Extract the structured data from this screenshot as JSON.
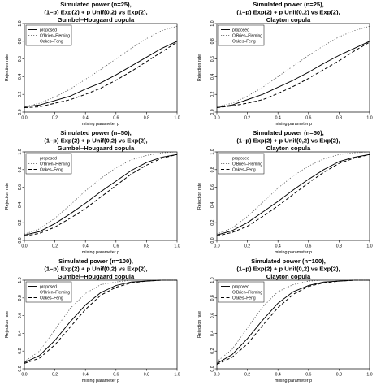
{
  "figure": {
    "xlabel": "mixing parameter p",
    "ylabel": "Rejection rate",
    "x": [
      0.0,
      0.1,
      0.2,
      0.3,
      0.4,
      0.5,
      0.6,
      0.7,
      0.8,
      0.9,
      1.0
    ],
    "xticks": [
      "0.0",
      "0.2",
      "0.4",
      "0.6",
      "0.8",
      "1.0"
    ],
    "yticks": [
      "0.0",
      "0.2",
      "0.4",
      "0.6",
      "0.8",
      "1.0"
    ],
    "legend": [
      "proposed",
      "O'Brien–Fleming",
      "Oakes–Feng"
    ]
  },
  "chart_data": [
    {
      "type": "line",
      "title": [
        "Simulated power (n=25),",
        "(1–p) Exp(2) + p Unif(0,2) vs Exp(2),",
        "Gumbel–Hougaard copula"
      ],
      "xlabel": "mixing parameter p",
      "ylabel": "Rejection rate",
      "xlim": [
        0,
        1
      ],
      "ylim": [
        0,
        1
      ],
      "legend_position": "top-left",
      "grid": false,
      "x": [
        0.0,
        0.1,
        0.2,
        0.3,
        0.4,
        0.5,
        0.6,
        0.7,
        0.8,
        0.9,
        1.0
      ],
      "series": [
        {
          "name": "proposed",
          "style": "solid",
          "values": [
            0.06,
            0.08,
            0.13,
            0.18,
            0.26,
            0.33,
            0.42,
            0.52,
            0.62,
            0.72,
            0.8
          ]
        },
        {
          "name": "O'Brien–Fleming",
          "style": "dotted",
          "values": [
            0.06,
            0.1,
            0.17,
            0.26,
            0.37,
            0.48,
            0.6,
            0.72,
            0.83,
            0.92,
            0.97
          ]
        },
        {
          "name": "Oakes–Feng",
          "style": "dashed",
          "values": [
            0.05,
            0.06,
            0.1,
            0.14,
            0.2,
            0.27,
            0.36,
            0.46,
            0.57,
            0.68,
            0.79
          ]
        }
      ]
    },
    {
      "type": "line",
      "title": [
        "Simulated power (n=25),",
        "(1–p) Exp(2) + p Unif(0,2) vs Exp(2),",
        "Clayton copula"
      ],
      "xlabel": "mixing parameter p",
      "ylabel": "Rejection rate",
      "xlim": [
        0,
        1
      ],
      "ylim": [
        0,
        1
      ],
      "legend_position": "top-left",
      "grid": false,
      "x": [
        0.0,
        0.1,
        0.2,
        0.3,
        0.4,
        0.5,
        0.6,
        0.7,
        0.8,
        0.9,
        1.0
      ],
      "series": [
        {
          "name": "proposed",
          "style": "solid",
          "values": [
            0.05,
            0.08,
            0.14,
            0.2,
            0.28,
            0.36,
            0.45,
            0.55,
            0.64,
            0.72,
            0.8
          ]
        },
        {
          "name": "O'Brien–Fleming",
          "style": "dotted",
          "values": [
            0.06,
            0.1,
            0.18,
            0.28,
            0.4,
            0.52,
            0.64,
            0.75,
            0.85,
            0.92,
            0.97
          ]
        },
        {
          "name": "Oakes–Feng",
          "style": "dashed",
          "values": [
            0.05,
            0.07,
            0.1,
            0.14,
            0.21,
            0.29,
            0.38,
            0.48,
            0.58,
            0.69,
            0.79
          ]
        }
      ]
    },
    {
      "type": "line",
      "title": [
        "Simulated power (n=50),",
        "(1–p) Exp(2) + p Unif(0,2) vs Exp(2),",
        "Gumbel–Hougaard copula"
      ],
      "xlabel": "mixing parameter p",
      "ylabel": "Rejection rate",
      "xlim": [
        0,
        1
      ],
      "ylim": [
        0,
        1
      ],
      "legend_position": "top-left",
      "grid": false,
      "x": [
        0.0,
        0.1,
        0.2,
        0.3,
        0.4,
        0.5,
        0.6,
        0.7,
        0.8,
        0.9,
        1.0
      ],
      "series": [
        {
          "name": "proposed",
          "style": "solid",
          "values": [
            0.06,
            0.1,
            0.19,
            0.3,
            0.42,
            0.55,
            0.67,
            0.79,
            0.88,
            0.94,
            0.97
          ]
        },
        {
          "name": "O'Brien–Fleming",
          "style": "dotted",
          "values": [
            0.07,
            0.13,
            0.25,
            0.4,
            0.56,
            0.7,
            0.82,
            0.91,
            0.96,
            0.99,
            1.0
          ]
        },
        {
          "name": "Oakes–Feng",
          "style": "dashed",
          "values": [
            0.05,
            0.08,
            0.15,
            0.25,
            0.36,
            0.49,
            0.62,
            0.75,
            0.85,
            0.93,
            0.97
          ]
        }
      ]
    },
    {
      "type": "line",
      "title": [
        "Simulated power (n=50),",
        "(1–p) Exp(2) + p Unif(0,2) vs Exp(2),",
        "Clayton copula"
      ],
      "xlabel": "mixing parameter p",
      "ylabel": "Rejection rate",
      "xlim": [
        0,
        1
      ],
      "ylim": [
        0,
        1
      ],
      "legend_position": "top-left",
      "grid": false,
      "x": [
        0.0,
        0.1,
        0.2,
        0.3,
        0.4,
        0.5,
        0.6,
        0.7,
        0.8,
        0.9,
        1.0
      ],
      "series": [
        {
          "name": "proposed",
          "style": "solid",
          "values": [
            0.06,
            0.11,
            0.2,
            0.32,
            0.44,
            0.57,
            0.69,
            0.8,
            0.89,
            0.94,
            0.97
          ]
        },
        {
          "name": "O'Brien–Fleming",
          "style": "dotted",
          "values": [
            0.07,
            0.14,
            0.27,
            0.43,
            0.59,
            0.73,
            0.84,
            0.92,
            0.97,
            0.99,
            1.0
          ]
        },
        {
          "name": "Oakes–Feng",
          "style": "dashed",
          "values": [
            0.05,
            0.09,
            0.16,
            0.27,
            0.39,
            0.52,
            0.65,
            0.77,
            0.87,
            0.93,
            0.97
          ]
        }
      ]
    },
    {
      "type": "line",
      "title": [
        "Simulated power (n=100),",
        "(1–p) Exp(2) + p Unif(0,2) vs Exp(2),",
        "Gumbel–Hougaard copula"
      ],
      "xlabel": "mixing parameter p",
      "ylabel": "Rejection rate",
      "xlim": [
        0,
        1
      ],
      "ylim": [
        0,
        1
      ],
      "legend_position": "top-left",
      "grid": false,
      "x": [
        0.0,
        0.1,
        0.2,
        0.3,
        0.4,
        0.5,
        0.6,
        0.7,
        0.8,
        0.9,
        1.0
      ],
      "series": [
        {
          "name": "proposed",
          "style": "solid",
          "values": [
            0.07,
            0.15,
            0.32,
            0.53,
            0.72,
            0.86,
            0.94,
            0.98,
            0.99,
            1.0,
            1.0
          ]
        },
        {
          "name": "O'Brien–Fleming",
          "style": "dotted",
          "values": [
            0.08,
            0.2,
            0.44,
            0.68,
            0.85,
            0.95,
            0.98,
            1.0,
            1.0,
            1.0,
            1.0
          ]
        },
        {
          "name": "Oakes–Feng",
          "style": "dashed",
          "values": [
            0.06,
            0.12,
            0.27,
            0.47,
            0.67,
            0.83,
            0.92,
            0.97,
            0.99,
            1.0,
            1.0
          ]
        }
      ]
    },
    {
      "type": "line",
      "title": [
        "Simulated power (n=100),",
        "(1–p) Exp(2) + p Unif(0,2) vs Exp(2),",
        "Clayton copula"
      ],
      "xlabel": "mixing parameter p",
      "ylabel": "Rejection rate",
      "xlim": [
        0,
        1
      ],
      "ylim": [
        0,
        1
      ],
      "legend_position": "top-left",
      "grid": false,
      "x": [
        0.0,
        0.1,
        0.2,
        0.3,
        0.4,
        0.5,
        0.6,
        0.7,
        0.8,
        0.9,
        1.0
      ],
      "series": [
        {
          "name": "proposed",
          "style": "solid",
          "values": [
            0.06,
            0.16,
            0.34,
            0.55,
            0.74,
            0.87,
            0.94,
            0.98,
            0.99,
            1.0,
            1.0
          ]
        },
        {
          "name": "O'Brien–Fleming",
          "style": "dotted",
          "values": [
            0.08,
            0.22,
            0.46,
            0.7,
            0.87,
            0.95,
            0.99,
            1.0,
            1.0,
            1.0,
            1.0
          ]
        },
        {
          "name": "Oakes–Feng",
          "style": "dashed",
          "values": [
            0.05,
            0.13,
            0.28,
            0.49,
            0.69,
            0.84,
            0.93,
            0.97,
            0.99,
            1.0,
            1.0
          ]
        }
      ]
    }
  ]
}
